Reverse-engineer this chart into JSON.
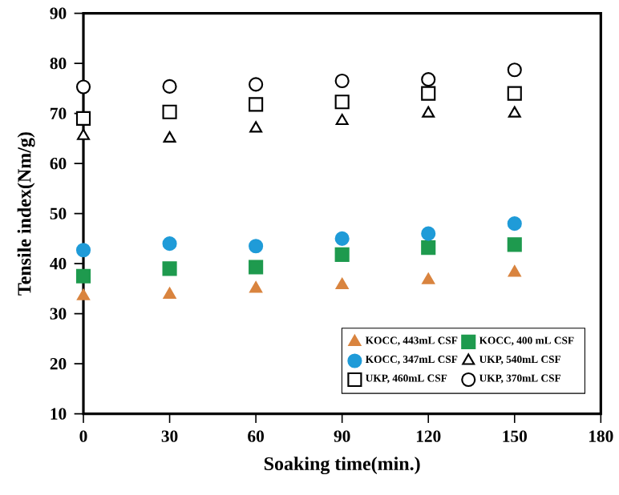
{
  "chart_data": {
    "type": "scatter",
    "xlabel": "Soaking time(min.)",
    "ylabel": "Tensile index(Nm/g)",
    "x": [
      0,
      30,
      60,
      90,
      120,
      150
    ],
    "xlim": [
      0,
      180
    ],
    "xticks": [
      0,
      30,
      60,
      90,
      120,
      150,
      180
    ],
    "ylim": [
      10,
      90
    ],
    "yticks": [
      10,
      20,
      30,
      40,
      50,
      60,
      70,
      80,
      90
    ],
    "grid": false,
    "legend": "bottom right",
    "series": [
      {
        "name": "KOCC, 443mL CSF",
        "color": "#d9843f",
        "marker": "triangle",
        "values": [
          33.5,
          33.8,
          35,
          35.7,
          36.7,
          38.2
        ]
      },
      {
        "name": "KOCC, 400 mL CSF",
        "color": "#1e9a4e",
        "marker": "square",
        "values": [
          37.5,
          39,
          39.3,
          41.8,
          43.2,
          43.8
        ]
      },
      {
        "name": "KOCC, 347mL CSF",
        "color": "#1f9bd8",
        "marker": "circle",
        "values": [
          42.7,
          44,
          43.5,
          45,
          46,
          48
        ]
      },
      {
        "name": "UKP, 540mL CSF",
        "color": "#000000",
        "marker": "triangle",
        "values": [
          65.5,
          65,
          67,
          68.5,
          70,
          70
        ]
      },
      {
        "name": "UKP, 460mL CSF",
        "color": "#000000",
        "marker": "square",
        "values": [
          69,
          70.3,
          71.8,
          72.3,
          74,
          74
        ]
      },
      {
        "name": "UKP, 370mL CSF",
        "color": "#000000",
        "marker": "circle",
        "values": [
          75.3,
          75.4,
          75.8,
          76.5,
          76.8,
          78.7
        ]
      }
    ]
  }
}
